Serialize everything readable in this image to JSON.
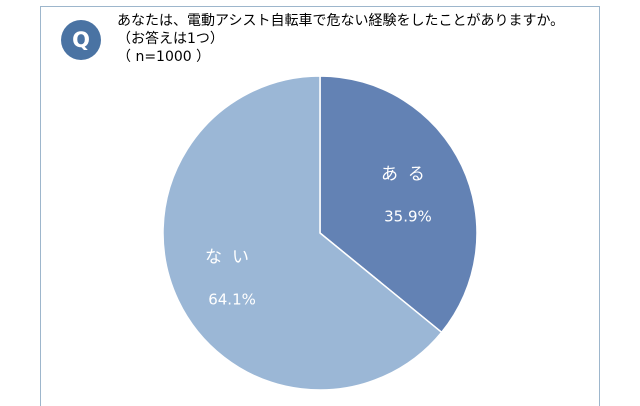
{
  "question": {
    "badge": "Q",
    "line1": "あなたは、電動アシスト自転車で危ない経験をしたことがありますか。",
    "line2": "（お答えは1つ）",
    "line3": "（ n=1000 ）"
  },
  "chart_data": {
    "type": "pie",
    "title": "",
    "start_angle_deg": 0,
    "direction": "clockwise",
    "slices": [
      {
        "label": "ある",
        "value": 35.9,
        "display": "35.9%",
        "color": "#6382b4"
      },
      {
        "label": "ない",
        "value": 64.1,
        "display": "64.1%",
        "color": "#9bb7d6"
      }
    ]
  }
}
